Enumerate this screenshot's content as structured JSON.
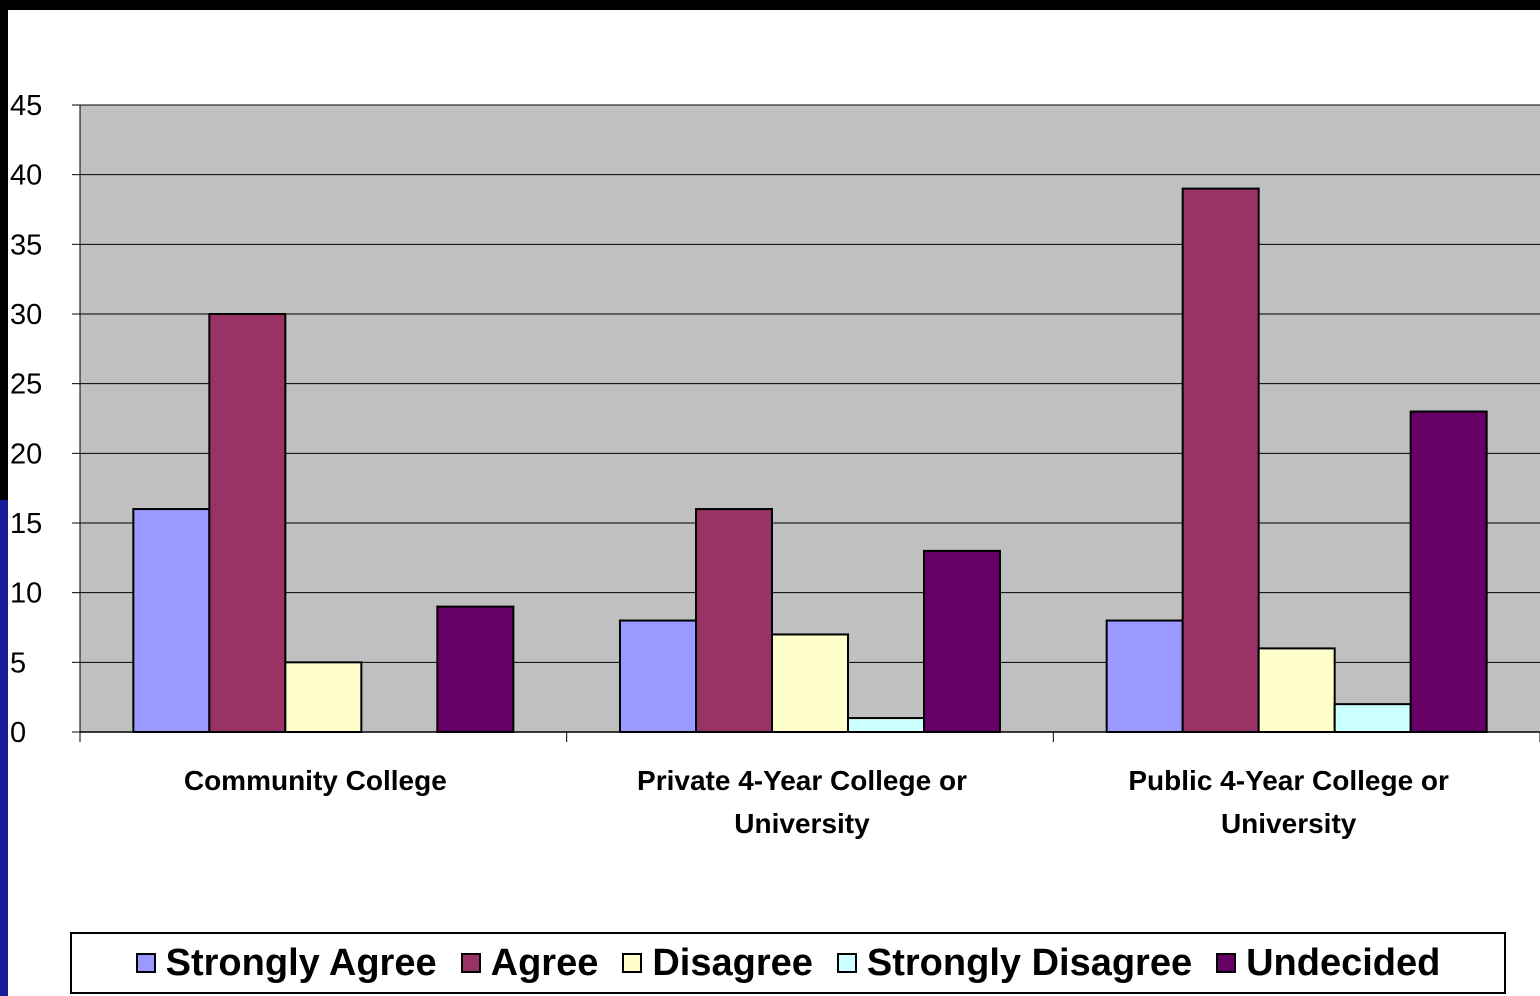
{
  "chart_data": {
    "type": "bar",
    "categories": [
      [
        "Community College"
      ],
      [
        "Private 4-Year College or",
        "University"
      ],
      [
        "Public 4-Year College or",
        "University"
      ]
    ],
    "series": [
      {
        "name": "Strongly Agree",
        "color": "#9999ff",
        "values": [
          16,
          8,
          8
        ]
      },
      {
        "name": "Agree",
        "color": "#993366",
        "values": [
          30,
          16,
          39
        ]
      },
      {
        "name": "Disagree",
        "color": "#ffffcc",
        "values": [
          5,
          7,
          6
        ]
      },
      {
        "name": "Strongly Disagree",
        "color": "#ccffff",
        "values": [
          0,
          1,
          2
        ]
      },
      {
        "name": "Undecided",
        "color": "#660066",
        "values": [
          9,
          13,
          23
        ]
      }
    ],
    "ylim": [
      0,
      45
    ],
    "yticks": [
      0,
      5,
      10,
      15,
      20,
      25,
      30,
      35,
      40,
      45
    ],
    "grid": true,
    "plot_background": "#c0c0c0",
    "legend_position": "bottom"
  }
}
